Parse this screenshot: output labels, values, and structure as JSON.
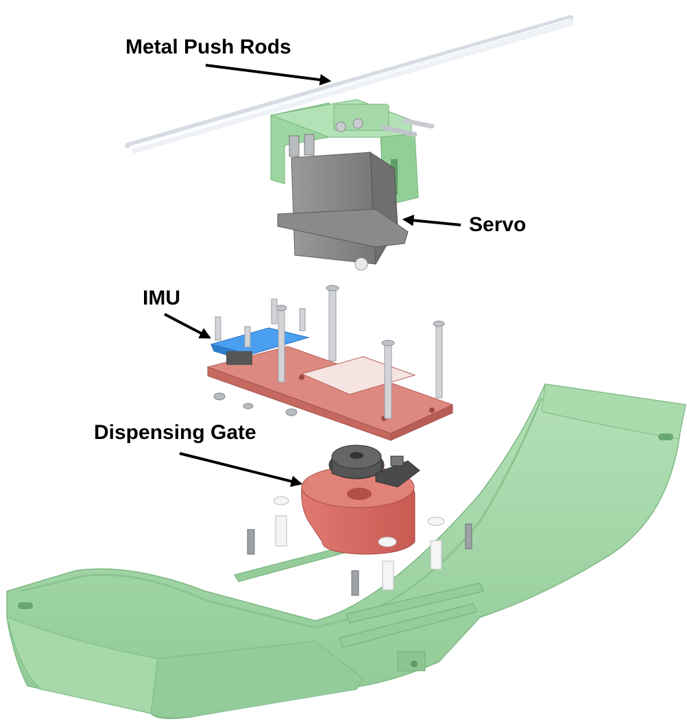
{
  "labels": {
    "push_rods": "Metal Push Rods",
    "servo": "Servo",
    "imu": "IMU",
    "gate": "Dispensing Gate"
  },
  "colors": {
    "base": "#9fd3a4",
    "bracket": "#9ed6a2",
    "servo": "#8f8f8f",
    "plate": "#d9827c",
    "imu": "#3c8fe3",
    "gate": "#d36a62",
    "rods": "#f3f5f8"
  }
}
